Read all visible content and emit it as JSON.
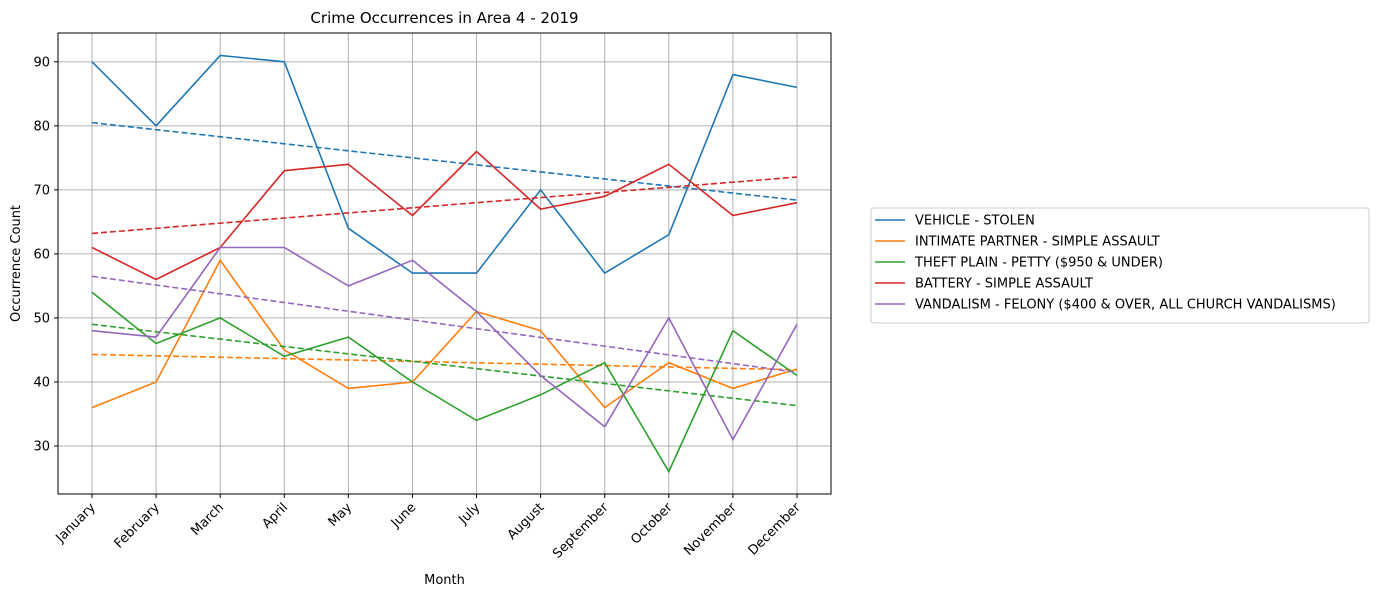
{
  "chart_data": {
    "type": "line",
    "title": "Crime Occurrences in Area 4 - 2019",
    "xlabel": "Month",
    "ylabel": "Occurrence Count",
    "categories": [
      "January",
      "February",
      "March",
      "April",
      "May",
      "June",
      "July",
      "August",
      "September",
      "October",
      "November",
      "December"
    ],
    "ylim": [
      22.5,
      94.5
    ],
    "yticks": [
      30,
      40,
      50,
      60,
      70,
      80,
      90
    ],
    "grid": true,
    "legend_position": "right",
    "series": [
      {
        "name": "VEHICLE - STOLEN",
        "color": "#1f77b4",
        "values": [
          90,
          80,
          91,
          90,
          64,
          57,
          57,
          70,
          57,
          63,
          88,
          86
        ],
        "trend": [
          80.5,
          68.4
        ]
      },
      {
        "name": "INTIMATE PARTNER - SIMPLE ASSAULT",
        "color": "#ff7f0e",
        "values": [
          36,
          40,
          59,
          45,
          39,
          40,
          51,
          48,
          36,
          43,
          39,
          42
        ],
        "trend": [
          44.3,
          41.9
        ]
      },
      {
        "name": "THEFT PLAIN - PETTY ($950 & UNDER)",
        "color": "#2ca02c",
        "values": [
          54,
          46,
          50,
          44,
          47,
          40,
          34,
          38,
          43,
          26,
          48,
          41
        ],
        "trend": [
          49.0,
          36.3
        ]
      },
      {
        "name": "BATTERY - SIMPLE ASSAULT",
        "color": "#d62728",
        "values": [
          61,
          56,
          61,
          73,
          74,
          66,
          76,
          67,
          69,
          74,
          66,
          68
        ],
        "trend": [
          63.2,
          72.0
        ]
      },
      {
        "name": "VANDALISM - FELONY ($400 & OVER, ALL CHURCH VANDALISMS)",
        "color": "#9467bd",
        "values": [
          48,
          47,
          61,
          61,
          55,
          59,
          51,
          41,
          33,
          50,
          31,
          49
        ],
        "trend": [
          56.5,
          41.5
        ]
      }
    ]
  }
}
